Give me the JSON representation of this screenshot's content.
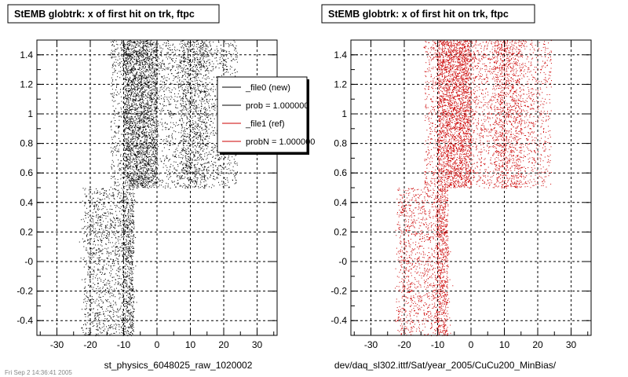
{
  "chart_data": [
    {
      "type": "scatter",
      "title": "StEMB globtrk: x of first hit on trk, ftpc",
      "xlabel": "st_physics_6048025_raw_1020002",
      "ylabel": "",
      "xlim": [
        -36,
        36
      ],
      "ylim": [
        -0.5,
        1.5
      ],
      "x_ticks": [
        -30,
        -20,
        -10,
        0,
        10,
        20,
        30
      ],
      "x_tick_labels": [
        "-30",
        "-20",
        "-10",
        "0",
        "10",
        "20",
        "30"
      ],
      "y_ticks": [
        -0.4,
        -0.2,
        0,
        0.2,
        0.4,
        0.6,
        0.8,
        1,
        1.2,
        1.4
      ],
      "y_tick_labels": [
        "-0.4",
        "-0.2",
        "-0",
        "0.2",
        "0.4",
        "0.6",
        "0.8",
        "1",
        "1.2",
        "1.4"
      ],
      "grid": true,
      "point_color": "#000000",
      "legend": {
        "position": "top-right",
        "entries": [
          {
            "label": "_file0 (new)",
            "color": "#000000"
          },
          {
            "label": "prob = 1.000000",
            "color": "#000000"
          },
          {
            "label": "_file1 (ref)",
            "color": "#cc0000"
          },
          {
            "label": "probN = 1.000000",
            "color": "#cc0000"
          }
        ]
      },
      "series": [
        {
          "x": [
            -22.5,
            -20.0,
            -18.0,
            -17.0,
            -14.0,
            -13.0,
            -12.0,
            -10.5,
            -9.5,
            -8.5
          ],
          "y": [
            -0.45,
            0.4,
            -0.35,
            0.3,
            -0.3,
            0.45,
            0.1,
            -0.4,
            0.2,
            0.35
          ]
        },
        {
          "x": [
            -14.0,
            -12.0,
            -9.0,
            -7.5,
            -6.0,
            -5.0,
            -3.0,
            -1.5,
            0.0,
            1.5,
            3.0,
            5.0,
            7.0,
            9.0,
            11.0,
            13.0,
            15.0,
            17.0,
            19.0,
            21.0,
            23.0
          ],
          "y": [
            1.4,
            1.2,
            0.95,
            1.3,
            0.8,
            1.1,
            0.75,
            0.55,
            1.45,
            1.25,
            0.7,
            1.0,
            1.35,
            0.9,
            0.6,
            1.15,
            0.85,
            1.05,
            0.65,
            1.3,
            0.95
          ]
        }
      ]
    },
    {
      "type": "scatter",
      "title": "StEMB globtrk: x of first hit on trk, ftpc",
      "xlabel": "dev/daq_sl302.ittf/Sat/year_2005/CuCu200_MinBias/",
      "ylabel": "",
      "xlim": [
        -36,
        36
      ],
      "ylim": [
        -0.5,
        1.5
      ],
      "x_ticks": [
        -30,
        -20,
        -10,
        0,
        10,
        20,
        30
      ],
      "x_tick_labels": [
        "-30",
        "-20",
        "-10",
        "0",
        "10",
        "20",
        "30"
      ],
      "y_ticks": [
        -0.4,
        -0.2,
        0,
        0.2,
        0.4,
        0.6,
        0.8,
        1,
        1.2,
        1.4
      ],
      "y_tick_labels": [
        "-0.4",
        "-0.2",
        "-0",
        "0.2",
        "0.4",
        "0.6",
        "0.8",
        "1",
        "1.2",
        "1.4"
      ],
      "grid": true,
      "point_color": "#cc0000",
      "series": [
        {
          "x": [
            -22.0,
            -20.5,
            -18.0,
            -16.5,
            -14.0,
            -12.5,
            -11.0,
            -10.0,
            -9.0,
            -8.0
          ],
          "y": [
            -0.4,
            0.35,
            -0.2,
            0.45,
            -0.35,
            0.15,
            0.4,
            -0.45,
            0.05,
            0.3
          ]
        },
        {
          "x": [
            -14.0,
            -12.0,
            -9.5,
            -7.5,
            -6.0,
            -4.5,
            -3.0,
            -1.5,
            0.0,
            1.5,
            3.0,
            5.0,
            7.0,
            9.0,
            11.0,
            13.0,
            15.0,
            17.0,
            19.0,
            21.0
          ],
          "y": [
            1.45,
            1.1,
            0.95,
            1.3,
            0.7,
            1.2,
            0.8,
            0.55,
            1.4,
            1.25,
            0.65,
            1.0,
            1.35,
            0.85,
            0.6,
            1.15,
            0.9,
            1.05,
            0.75,
            1.3
          ]
        }
      ]
    }
  ],
  "footer_stamp": "Fri Sep 2 14:36:41 2005"
}
